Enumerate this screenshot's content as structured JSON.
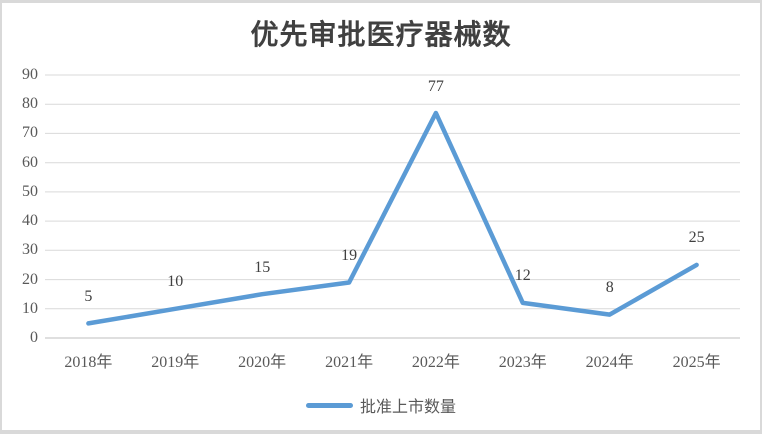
{
  "chart_data": {
    "type": "line",
    "title": "优先审批医疗器械数",
    "categories": [
      "2018年",
      "2019年",
      "2020年",
      "2021年",
      "2022年",
      "2023年",
      "2024年",
      "2025年"
    ],
    "series": [
      {
        "name": "批准上市数量",
        "values": [
          5,
          10,
          15,
          19,
          77,
          12,
          8,
          25
        ]
      }
    ],
    "ylim": [
      0,
      90
    ],
    "ytick_step": 10,
    "grid": true,
    "show_data_labels": true,
    "legend_position": "bottom",
    "colors": {
      "line": "#5B9BD5",
      "gridline": "#D9D9D9",
      "axis_line": "#BFBFBF",
      "title_text": "#404040",
      "tick_text": "#595959",
      "data_label_text": "#404040"
    }
  }
}
